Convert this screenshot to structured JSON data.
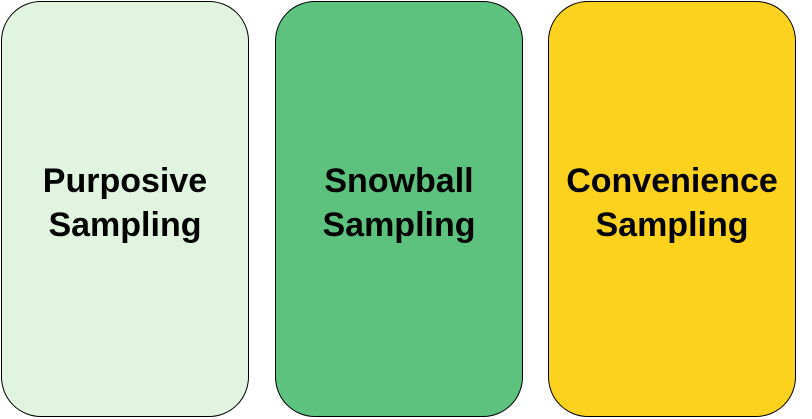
{
  "cards": [
    {
      "line1": "Purposive",
      "line2": "Sampling",
      "color": "#e0f4e0"
    },
    {
      "line1": "Snowball",
      "line2": "Sampling",
      "color": "#5cc27e"
    },
    {
      "line1": "Convenience",
      "line2": "Sampling",
      "color": "#fcd21f"
    }
  ]
}
